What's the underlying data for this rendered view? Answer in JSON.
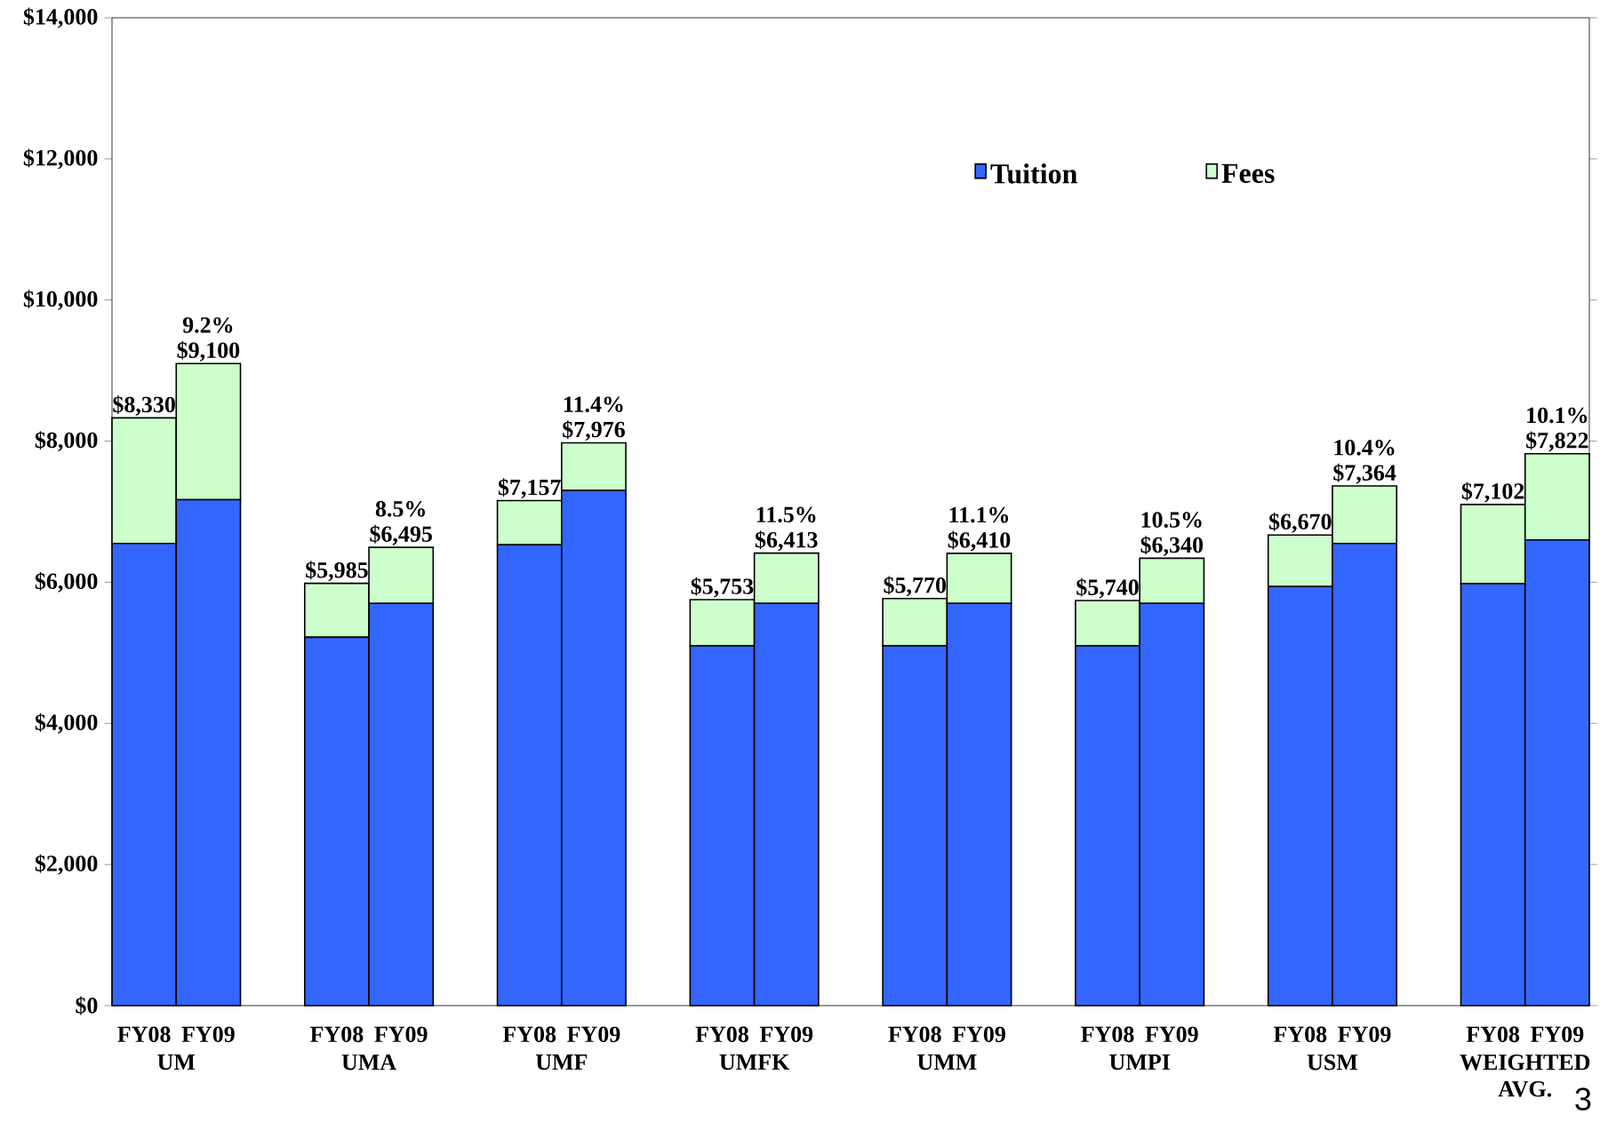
{
  "chart_data": {
    "type": "bar",
    "stacked": true,
    "categories": [
      "FY08",
      "FY09",
      "FY08",
      "FY09",
      "FY08",
      "FY09",
      "FY08",
      "FY09",
      "FY08",
      "FY09",
      "FY08",
      "FY09",
      "FY08",
      "FY09",
      "FY08",
      "FY09"
    ],
    "series": [
      {
        "name": "Tuition",
        "color": "#3366ff",
        "values": [
          6550,
          7170,
          5220,
          5700,
          6530,
          7300,
          5100,
          5700,
          5100,
          5700,
          5100,
          5700,
          5940,
          6550,
          5980,
          6600
        ]
      },
      {
        "name": "Fees",
        "color": "#ccffcc",
        "values": [
          1780,
          1930,
          765,
          795,
          627,
          676,
          653,
          713,
          670,
          710,
          640,
          640,
          730,
          814,
          1122,
          1222
        ]
      }
    ],
    "totals": [
      "$8,330",
      "$9,100",
      "$5,985",
      "$6,495",
      "$7,157",
      "$7,976",
      "$5,753",
      "$6,413",
      "$5,770",
      "$6,410",
      "$5,740",
      "$6,340",
      "$6,670",
      "$7,364",
      "$7,102",
      "$7,822"
    ],
    "annotations": [
      "UM",
      "UMA",
      "UMF",
      "UMFK",
      "UMM",
      "UMPI",
      "USM",
      "WEIGHTED AVG.",
      "9.2%",
      "8.5%",
      "11.4%",
      "11.5%",
      "11.1%",
      "10.5%",
      "10.4%",
      "10.1%",
      "3"
    ],
    "ylim": [
      0,
      14000
    ],
    "yticks": [
      {
        "value": 0,
        "label": "$0"
      },
      {
        "value": 2000,
        "label": "$2,000"
      },
      {
        "value": 4000,
        "label": "$4,000"
      },
      {
        "value": 6000,
        "label": "$6,000"
      },
      {
        "value": 8000,
        "label": "$8,000"
      },
      {
        "value": 10000,
        "label": "$10,000"
      },
      {
        "value": 12000,
        "label": "$12,000"
      },
      {
        "value": 14000,
        "label": "$14,000"
      }
    ],
    "legend": "top right",
    "grid": false
  }
}
